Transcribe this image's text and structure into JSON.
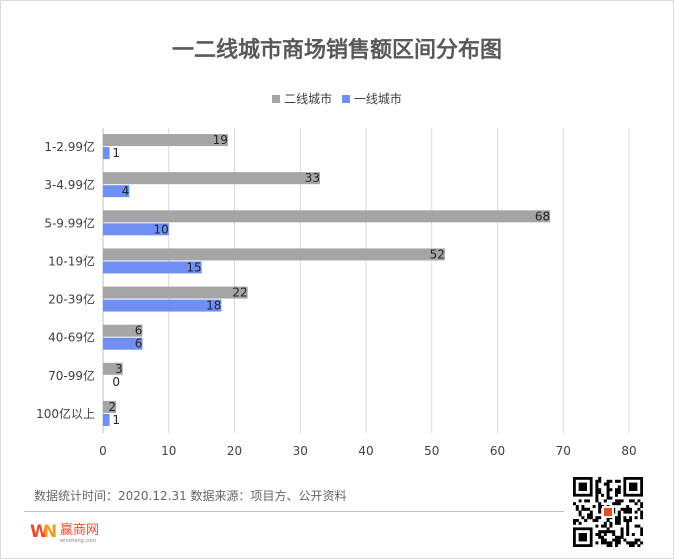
{
  "title": "一二线城市商场销售额区间分布图",
  "legend": [
    {
      "name": "二线城市",
      "color": "#a5a5a5"
    },
    {
      "name": "一线城市",
      "color": "#6f8ff5"
    }
  ],
  "chart_data": {
    "type": "bar",
    "orientation": "horizontal",
    "categories": [
      "1-2.99亿",
      "3-4.99亿",
      "5-9.99亿",
      "10-19亿",
      "20-39亿",
      "40-69亿",
      "70-99亿",
      "100亿以上"
    ],
    "series": [
      {
        "name": "二线城市",
        "values": [
          19,
          33,
          68,
          52,
          22,
          6,
          3,
          2
        ]
      },
      {
        "name": "一线城市",
        "values": [
          1,
          4,
          10,
          15,
          18,
          6,
          0,
          1
        ]
      }
    ],
    "xlim": [
      0,
      80
    ],
    "xticks": [
      0,
      10,
      20,
      30,
      40,
      50,
      60,
      70,
      80
    ],
    "grid": true,
    "legend_position": "top"
  },
  "footer": {
    "note": "数据统计时间：2020.12.31  数据来源：项目方、公开资料",
    "logo_text": "赢商网",
    "logo_sub": "winshang.com"
  },
  "colors": {
    "series2": "#a5a5a5",
    "series1": "#6f8ff5",
    "grid": "#d9d9d9"
  }
}
